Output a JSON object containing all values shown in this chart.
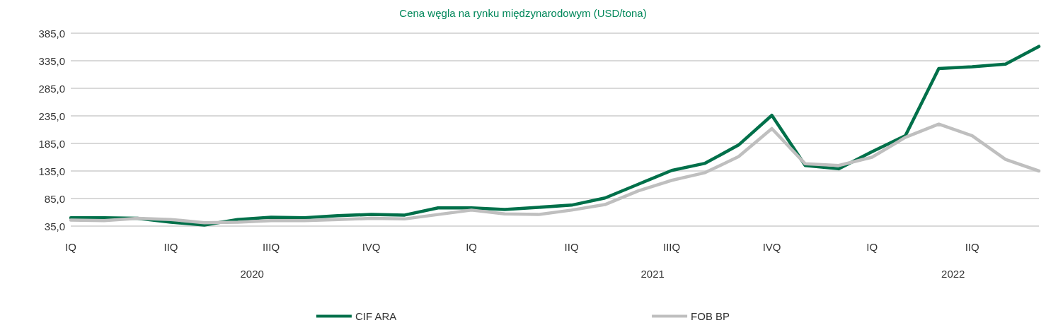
{
  "chart_data": {
    "type": "line",
    "title": "Cena węgla na rynku międzynarodowym (USD/tona)",
    "categories": [
      "IQ",
      null,
      null,
      "IIQ",
      null,
      null,
      "IIIQ",
      null,
      null,
      "IVQ",
      null,
      null,
      "IQ",
      null,
      null,
      "IIQ",
      null,
      null,
      "IIIQ",
      null,
      null,
      "IVQ",
      null,
      null,
      "IQ",
      null,
      null,
      "IIQ",
      null,
      null
    ],
    "series": [
      {
        "name": "CIF ARA",
        "color": "#00704a",
        "values": [
          50,
          50,
          49,
          42,
          37,
          47,
          51,
          50,
          54,
          56,
          55,
          68,
          68,
          65,
          69,
          73,
          86,
          111,
          136,
          149,
          182,
          236,
          145,
          139,
          170,
          199,
          321,
          324,
          329,
          361
        ]
      },
      {
        "name": "FOB BP",
        "color": "#bfbfbf",
        "values": [
          46,
          45,
          49,
          47,
          41,
          42,
          45,
          45,
          47,
          49,
          48,
          56,
          64,
          57,
          56,
          64,
          74,
          99,
          118,
          132,
          161,
          212,
          148,
          145,
          160,
          196,
          220,
          199,
          156,
          135
        ]
      }
    ],
    "ylim": [
      35,
      385
    ],
    "yticks": [
      {
        "value": 35,
        "label": "35,0"
      },
      {
        "value": 85,
        "label": "85,0"
      },
      {
        "value": 135,
        "label": "135,0"
      },
      {
        "value": 185,
        "label": "185,0"
      },
      {
        "value": 235,
        "label": "235,0"
      },
      {
        "value": 285,
        "label": "285,0"
      },
      {
        "value": 335,
        "label": "335,0"
      },
      {
        "value": 385,
        "label": "385,0"
      }
    ],
    "annotations": [
      "2020",
      "2021",
      "2022"
    ],
    "grid": "y",
    "legend": "bottom",
    "marker": "none",
    "line_style": "solid"
  }
}
